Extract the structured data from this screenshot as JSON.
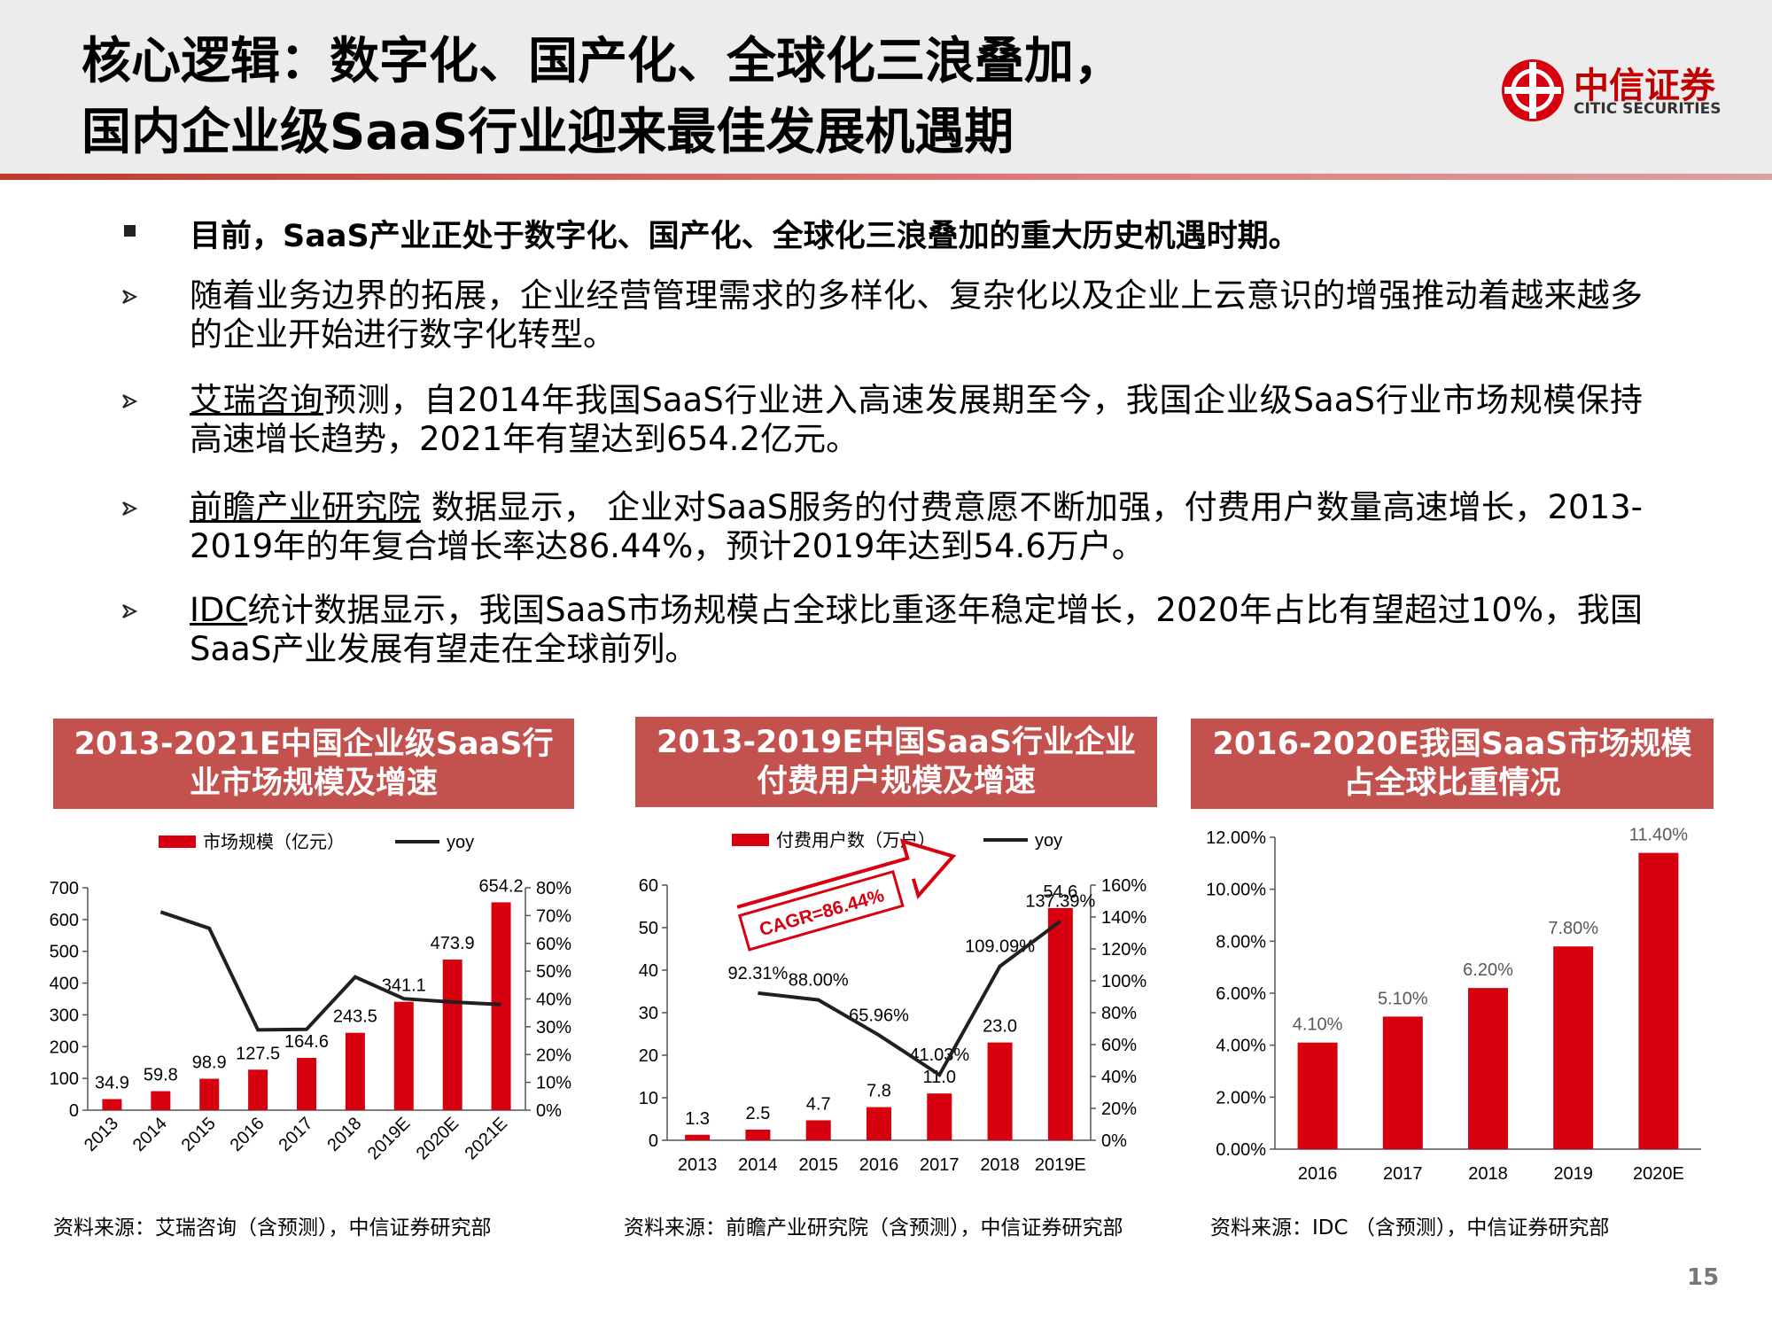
{
  "header": {
    "title_lines": [
      "核心逻辑：数字化、国产化、全球化三浪叠加，",
      "国内企业级SaaS行业迎来最佳发展机遇期"
    ],
    "logo_cn": "中信证券",
    "logo_en": "CITIC SECURITIES"
  },
  "bullets": {
    "lead": "目前，SaaS产业正处于数字化、国产化、全球化三浪叠加的重大历史机遇时期。",
    "items": [
      {
        "text": "随着业务边界的拓展，企业经营管理需求的多样化、复杂化以及企业上云意识的增强推动着越来越多的企业开始进行数字化转型。"
      },
      {
        "source": "艾瑞咨询",
        "text": "预测，自2014年我国SaaS行业进入高速发展期至今，我国企业级SaaS行业市场规模保持高速增长趋势，2021年有望达到654.2亿元。"
      },
      {
        "source": "前瞻产业研究院",
        "text": " 数据显示， 企业对SaaS服务的付费意愿不断加强，付费用户数量高速增长，2013-2019年的年复合增长率达86.44%，预计2019年达到54.6万户。"
      },
      {
        "source": "IDC",
        "text": "统计数据显示，我国SaaS市场规模占全球比重逐年稳定增长，2020年占比有望超过10%，我国SaaS产业发展有望走在全球前列。"
      }
    ]
  },
  "chart_data": [
    {
      "type": "combo",
      "title": "2013-2021E中国企业级SaaS行业市场规模及增速",
      "categories": [
        "2013",
        "2014",
        "2015",
        "2016",
        "2017",
        "2018",
        "2019E",
        "2020E",
        "2021E"
      ],
      "series": [
        {
          "name": "市场规模（亿元）",
          "type": "bar",
          "color": "#d7000f",
          "values": [
            34.9,
            59.8,
            98.9,
            127.5,
            164.6,
            243.5,
            341.1,
            473.9,
            654.2
          ]
        },
        {
          "name": "yoy",
          "type": "line",
          "axis": "y2",
          "color": "#231f20",
          "values": [
            null,
            71.3,
            65.4,
            28.9,
            29.1,
            47.9,
            40.1,
            38.9,
            38.0
          ]
        }
      ],
      "ylim": [
        0,
        700
      ],
      "yticks": [
        0,
        100,
        200,
        300,
        400,
        500,
        600,
        700
      ],
      "y2lim": [
        0,
        80
      ],
      "y2ticks": [
        {
          "value": 0,
          "label": "0%"
        },
        {
          "value": 10,
          "label": "10%"
        },
        {
          "value": 20,
          "label": "20%"
        },
        {
          "value": 30,
          "label": "30%"
        },
        {
          "value": 40,
          "label": "40%"
        },
        {
          "value": 50,
          "label": "50%"
        },
        {
          "value": 60,
          "label": "60%"
        },
        {
          "value": 70,
          "label": "70%"
        },
        {
          "value": 80,
          "label": "80%"
        }
      ],
      "legend": "top"
    },
    {
      "type": "combo",
      "title": "2013-2019E中国SaaS行业企业付费用户规模及增速",
      "categories": [
        "2013",
        "2014",
        "2015",
        "2016",
        "2017",
        "2018",
        "2019E"
      ],
      "series": [
        {
          "name": "付费用户数（万户）",
          "type": "bar",
          "color": "#d7000f",
          "values": [
            1.3,
            2.5,
            4.7,
            7.8,
            11.0,
            23.0,
            54.6
          ],
          "value_labels": [
            "1.3",
            "2.5",
            "4.7",
            "7.8",
            "11.0",
            "23.0",
            "54.6"
          ]
        },
        {
          "name": "yoy",
          "type": "line",
          "axis": "y2",
          "color": "#231f20",
          "values": [
            null,
            92.31,
            88.0,
            65.96,
            41.03,
            109.09,
            137.39
          ],
          "value_labels": [
            null,
            "92.31%",
            "88.00%",
            "65.96%",
            "41.03%",
            "109.09%",
            "137.39%"
          ]
        }
      ],
      "ylim": [
        0,
        60
      ],
      "yticks": [
        0,
        10,
        20,
        30,
        40,
        50,
        60
      ],
      "y2lim": [
        0,
        160
      ],
      "y2ticks": [
        {
          "value": 0,
          "label": "0%"
        },
        {
          "value": 20,
          "label": "20%"
        },
        {
          "value": 40,
          "label": "40%"
        },
        {
          "value": 60,
          "label": "60%"
        },
        {
          "value": 80,
          "label": "80%"
        },
        {
          "value": 100,
          "label": "100%"
        },
        {
          "value": 120,
          "label": "120%"
        },
        {
          "value": 140,
          "label": "140%"
        },
        {
          "value": 160,
          "label": "160%"
        }
      ],
      "annotation": "CAGR=86.44%",
      "legend": "top"
    },
    {
      "type": "bar",
      "title": "2016-2020E我国SaaS市场规模占全球比重情况",
      "categories": [
        "2016",
        "2017",
        "2018",
        "2019",
        "2020E"
      ],
      "values": [
        4.1,
        5.1,
        6.2,
        7.8,
        11.4
      ],
      "value_labels": [
        "4.10%",
        "5.10%",
        "6.20%",
        "7.80%",
        "11.40%"
      ],
      "color": "#d7000f",
      "ylim": [
        0,
        12
      ],
      "yticks": [
        {
          "value": 0,
          "label": "0.00%"
        },
        {
          "value": 2,
          "label": "2.00%"
        },
        {
          "value": 4,
          "label": "4.00%"
        },
        {
          "value": 6,
          "label": "6.00%"
        },
        {
          "value": 8,
          "label": "8.00%"
        },
        {
          "value": 10,
          "label": "10.00%"
        },
        {
          "value": 12,
          "label": "12.00%"
        }
      ]
    }
  ],
  "sources": [
    "资料来源：艾瑞咨询（含预测），中信证券研究部",
    "资料来源：前瞻产业研究院（含预测），中信证券研究部",
    "资料来源：IDC （含预测），中信证券研究部"
  ],
  "page_number": "15"
}
